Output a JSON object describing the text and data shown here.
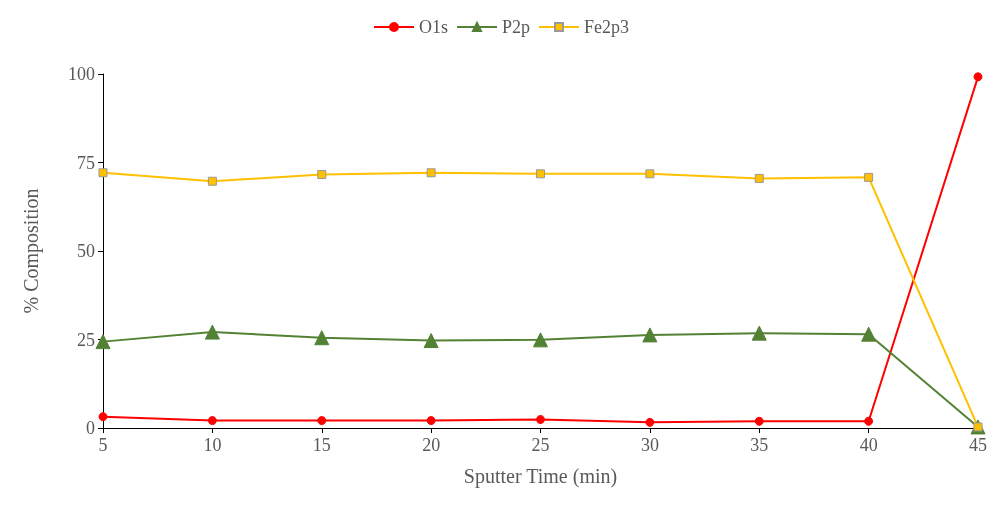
{
  "chart_data": {
    "type": "line",
    "xlabel": "Sputter Time (min)",
    "ylabel": "% Composition",
    "x": [
      5,
      10,
      15,
      20,
      25,
      30,
      35,
      40,
      45
    ],
    "xlim": [
      5,
      45
    ],
    "xticks": [
      5,
      10,
      15,
      20,
      25,
      30,
      35,
      40,
      45
    ],
    "ylim": [
      0,
      100
    ],
    "yticks": [
      0,
      25,
      50,
      75,
      100
    ],
    "grid": false,
    "legend": "top",
    "series": [
      {
        "name": "O1s",
        "color": "#ff0000",
        "marker": "circle",
        "values": [
          3.2,
          2.1,
          2.1,
          2.1,
          2.4,
          1.6,
          1.9,
          1.9,
          99.2
        ]
      },
      {
        "name": "P2p",
        "color": "#548235",
        "marker": "triangle",
        "values": [
          24.4,
          27.1,
          25.5,
          24.7,
          24.9,
          26.3,
          26.8,
          26.5,
          0.3
        ]
      },
      {
        "name": "Fe2p3",
        "color": "#ffc000",
        "marker": "square",
        "values": [
          72.1,
          69.7,
          71.6,
          72.1,
          71.8,
          71.8,
          70.5,
          70.8,
          0.3
        ]
      }
    ]
  }
}
